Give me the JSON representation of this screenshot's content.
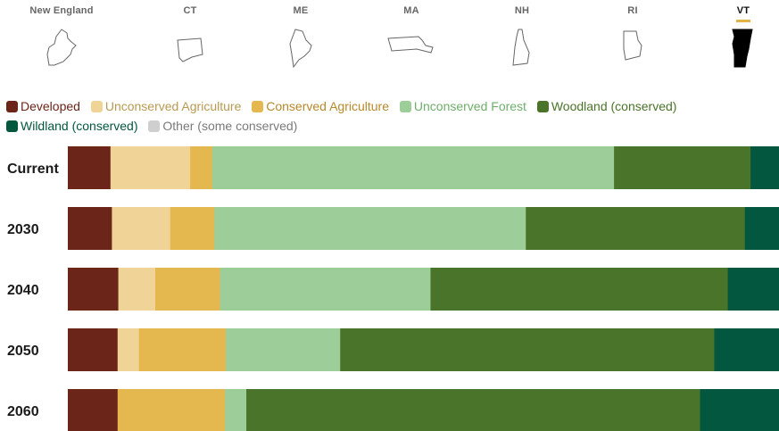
{
  "tabs": [
    {
      "label": "New England",
      "icon": "new-england-map-icon",
      "active": false
    },
    {
      "label": "CT",
      "icon": "connecticut-map-icon",
      "active": false
    },
    {
      "label": "ME",
      "icon": "maine-map-icon",
      "active": false
    },
    {
      "label": "MA",
      "icon": "massachusetts-map-icon",
      "active": false
    },
    {
      "label": "NH",
      "icon": "new-hampshire-map-icon",
      "active": false
    },
    {
      "label": "RI",
      "icon": "rhode-island-map-icon",
      "active": false
    },
    {
      "label": "VT",
      "icon": "vermont-map-icon",
      "active": true
    }
  ],
  "accent_color": "#e3b349",
  "legend": [
    {
      "label": "Developed",
      "color": "#6b2519",
      "text_color": "#6b2519"
    },
    {
      "label": "Unconserved Agriculture",
      "color": "#f0d497",
      "text_color": "#b89a52"
    },
    {
      "label": "Conserved Agriculture",
      "color": "#e5b74f",
      "text_color": "#b8892a"
    },
    {
      "label": "Unconserved Forest",
      "color": "#9dcd99",
      "text_color": "#6fae6b"
    },
    {
      "label": "Woodland (conserved)",
      "color": "#4a7429",
      "text_color": "#4a7429"
    },
    {
      "label": "Wildland (conserved)",
      "color": "#03573e",
      "text_color": "#03573e"
    },
    {
      "label": "Other (some conserved)",
      "color": "#cfcfcf",
      "text_color": "#7a7a7a"
    }
  ],
  "chart_data": {
    "type": "bar",
    "orientation": "horizontal",
    "stacked": true,
    "normalized_to": 100,
    "categories": [
      "Current",
      "2030",
      "2040",
      "2050",
      "2060"
    ],
    "series": [
      {
        "name": "Developed",
        "values": [
          6.0,
          6.2,
          7.1,
          7.0,
          7.0
        ]
      },
      {
        "name": "Unconserved Agriculture",
        "values": [
          11.2,
          8.2,
          5.2,
          3.0,
          0.0
        ]
      },
      {
        "name": "Conserved Agriculture",
        "values": [
          3.1,
          6.2,
          9.1,
          12.2,
          15.1
        ]
      },
      {
        "name": "Unconserved Forest",
        "values": [
          56.5,
          43.8,
          29.6,
          16.1,
          3.0
        ]
      },
      {
        "name": "Woodland (conserved)",
        "values": [
          19.2,
          30.8,
          41.8,
          52.6,
          63.8
        ]
      },
      {
        "name": "Wildland (conserved)",
        "values": [
          4.1,
          5.1,
          7.2,
          9.1,
          11.1
        ]
      },
      {
        "name": "Other (some conserved)",
        "values": [
          1.5,
          1.5,
          1.5,
          1.5,
          1.5
        ]
      }
    ],
    "grid": false,
    "legend_position": "top-left"
  }
}
